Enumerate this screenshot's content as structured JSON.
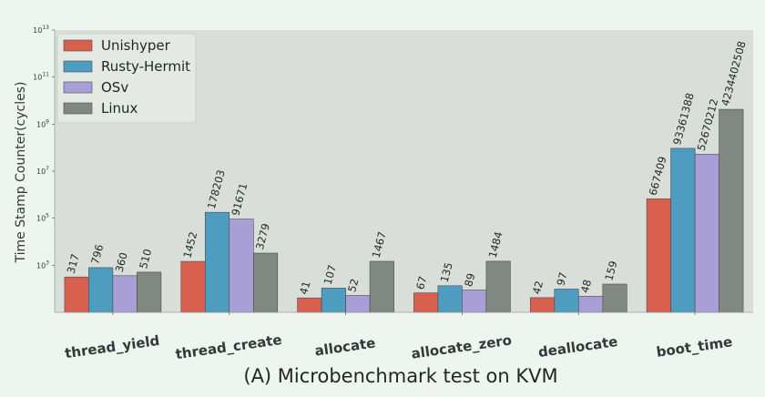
{
  "chart_data": {
    "type": "bar",
    "title": "(A) Microbenchmark test on KVM",
    "ylabel": "Time Stamp Counter(cycles)",
    "xlabel": "",
    "yscale": "log",
    "ylim": [
      10,
      10000000000000.0
    ],
    "ytick_values": [
      1000,
      100000,
      10000000,
      1000000000,
      100000000000,
      10000000000000
    ],
    "ytick_labels": [
      {
        "base": "10",
        "exp": "3"
      },
      {
        "base": "10",
        "exp": "5"
      },
      {
        "base": "10",
        "exp": "7"
      },
      {
        "base": "10",
        "exp": "9"
      },
      {
        "base": "10",
        "exp": "11"
      },
      {
        "base": "10",
        "exp": "13"
      }
    ],
    "grid": false,
    "legend_position": "top-left",
    "categories": [
      "thread_yield",
      "thread_create",
      "allocate",
      "allocate_zero",
      "deallocate",
      "boot_time"
    ],
    "series": [
      {
        "name": "Unishyper",
        "color": "#d8604f",
        "values": [
          317,
          1452,
          41,
          67,
          42,
          667409
        ]
      },
      {
        "name": "Rusty-Hermit",
        "color": "#4e9cc0",
        "values": [
          796,
          178203,
          107,
          135,
          97,
          93361388
        ]
      },
      {
        "name": "OSv",
        "color": "#a79fd6",
        "values": [
          360,
          91671,
          52,
          89,
          48,
          52670212
        ]
      },
      {
        "name": "Linux",
        "color": "#7f8881",
        "values": [
          510,
          3279,
          1467,
          1484,
          159,
          4234402508
        ]
      }
    ],
    "label_text": [
      [
        "317",
        "1452",
        "41",
        "67",
        "42",
        "667409"
      ],
      [
        "796",
        "178203",
        "107",
        "135",
        "97",
        "93361388"
      ],
      [
        "360",
        "91671",
        "52",
        "89",
        "48",
        "52670212"
      ],
      [
        "510",
        "3279",
        "1467",
        "1484",
        "159",
        "4234402508"
      ]
    ],
    "colors": {
      "plot_background": "#d9dfd8",
      "page_background": "#eef4ee",
      "text": "#2f3a3a"
    }
  }
}
